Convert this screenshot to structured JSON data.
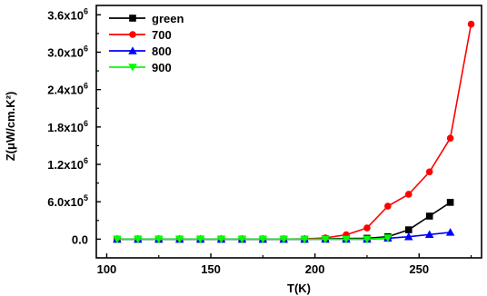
{
  "chart_data": {
    "type": "line",
    "xlabel": "T(K)",
    "ylabel": "Z(μW/cm.K²)",
    "xlim": [
      95,
      280
    ],
    "ylim": [
      -300000,
      3750000
    ],
    "xticks": [
      100,
      150,
      200,
      250
    ],
    "xtick_labels": [
      "100",
      "150",
      "200",
      "250"
    ],
    "yticks": [
      0,
      600000,
      1200000,
      1800000,
      2400000,
      3000000,
      3600000
    ],
    "ytick_labels": [
      {
        "base": "0.0",
        "exp": ""
      },
      {
        "base": "6.0x10",
        "exp": "5"
      },
      {
        "base": "1.2x10",
        "exp": "6"
      },
      {
        "base": "1.8x10",
        "exp": "6"
      },
      {
        "base": "2.4x10",
        "exp": "6"
      },
      {
        "base": "3.0x10",
        "exp": "6"
      },
      {
        "base": "3.6x10",
        "exp": "6"
      }
    ],
    "legend_position": "top-left",
    "series": [
      {
        "name": "green",
        "color": "#000000",
        "marker": "square",
        "x": [
          105,
          115,
          125,
          135,
          145,
          155,
          165,
          175,
          185,
          195,
          205,
          215,
          225,
          235,
          245,
          255,
          265
        ],
        "y": [
          0,
          0,
          0,
          0,
          0,
          0,
          0,
          0,
          0,
          0,
          5000,
          10000,
          15000,
          40000,
          150000,
          370000,
          590000
        ]
      },
      {
        "name": "700",
        "color": "#ff0000",
        "marker": "circle",
        "x": [
          105,
          115,
          125,
          135,
          145,
          155,
          165,
          175,
          185,
          195,
          205,
          215,
          225,
          235,
          245,
          255,
          265,
          275
        ],
        "y": [
          0,
          0,
          0,
          0,
          0,
          0,
          0,
          0,
          0,
          5000,
          20000,
          70000,
          180000,
          530000,
          720000,
          1080000,
          1620000,
          3450000
        ]
      },
      {
        "name": "800",
        "color": "#0000ff",
        "marker": "triangle-up",
        "x": [
          105,
          115,
          125,
          135,
          145,
          155,
          165,
          175,
          185,
          195,
          205,
          215,
          225,
          235,
          245,
          255,
          265
        ],
        "y": [
          0,
          0,
          0,
          0,
          0,
          0,
          0,
          0,
          0,
          0,
          0,
          0,
          0,
          15000,
          40000,
          75000,
          110000
        ]
      },
      {
        "name": "900",
        "color": "#00ff00",
        "marker": "triangle-down",
        "x": [
          105,
          115,
          125,
          135,
          145,
          155,
          165,
          175,
          185,
          195,
          205,
          215,
          225,
          235
        ],
        "y": [
          0,
          0,
          0,
          0,
          0,
          0,
          0,
          0,
          0,
          0,
          0,
          0,
          0,
          20000
        ]
      }
    ]
  }
}
